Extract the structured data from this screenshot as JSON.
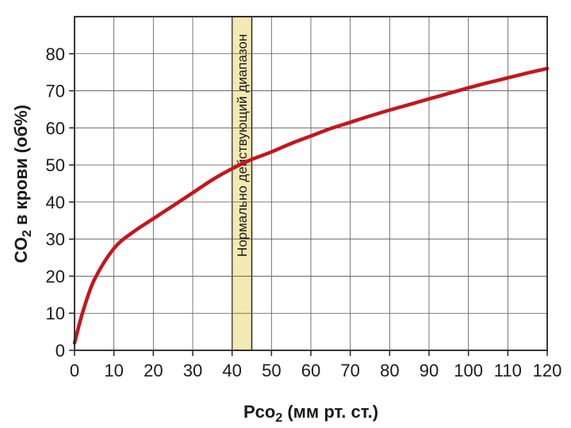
{
  "chart_data": {
    "type": "line",
    "xlabel": {
      "main": "Pco",
      "sub": "2",
      "rest": " (мм рт. ст.)"
    },
    "ylabel": {
      "main": "CO",
      "sub": "2",
      "rest": " в крови (об%)"
    },
    "xlim": [
      0,
      120
    ],
    "ylim": [
      0,
      90
    ],
    "x_ticks": [
      0,
      10,
      20,
      30,
      40,
      50,
      60,
      70,
      80,
      90,
      100,
      110,
      120
    ],
    "y_ticks": [
      0,
      10,
      20,
      30,
      40,
      50,
      60,
      70,
      80
    ],
    "grid": true,
    "band": {
      "x_range": [
        40,
        45
      ],
      "label": "Нормально действующий диапазон",
      "color": "#f3e9b2"
    },
    "series": [
      {
        "color": "#c4161c",
        "x": [
          0,
          2,
          5,
          10,
          15,
          20,
          25,
          30,
          35,
          40,
          45,
          50,
          55,
          60,
          65,
          70,
          75,
          80,
          85,
          90,
          95,
          100,
          105,
          110,
          115,
          120
        ],
        "y": [
          2,
          10,
          19,
          27.5,
          32,
          35.5,
          39,
          42.5,
          46,
          49,
          51.5,
          53.5,
          55.8,
          57.8,
          59.8,
          61.5,
          63.2,
          64.8,
          66.3,
          67.8,
          69.3,
          70.8,
          72.2,
          73.5,
          74.8,
          76
        ]
      }
    ]
  }
}
